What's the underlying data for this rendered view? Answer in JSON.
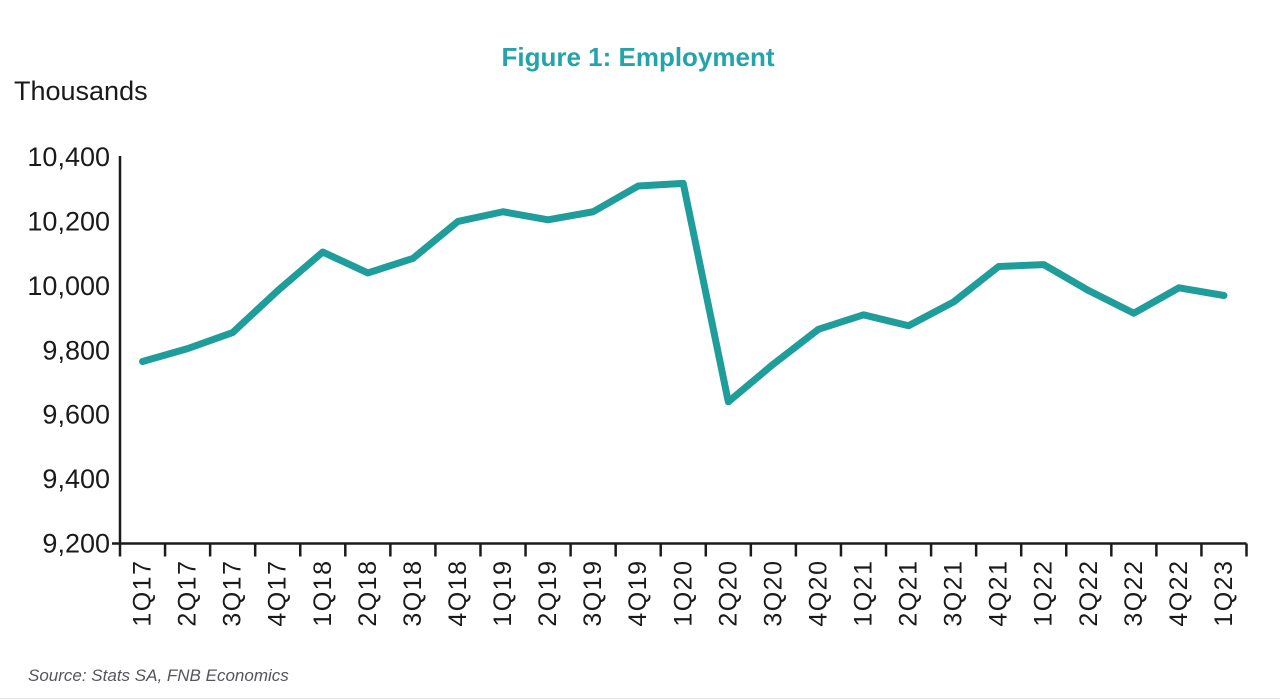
{
  "page": {
    "background": "#ffffff"
  },
  "colors": {
    "title": "#23A4AA",
    "line": "#1F9D9B",
    "axis": "#1B1B1B",
    "text": "#1A1A1A",
    "source": "#55565A",
    "divider": "#E7E7E7"
  },
  "chart_data": {
    "type": "line",
    "title": "Figure 1: Employment",
    "unit_label": "Thousands",
    "source": "Source: Stats SA, FNB Economics",
    "categories": [
      "1Q17",
      "2Q17",
      "3Q17",
      "4Q17",
      "1Q18",
      "2Q18",
      "3Q18",
      "4Q18",
      "1Q19",
      "2Q19",
      "3Q19",
      "4Q19",
      "1Q20",
      "2Q20",
      "3Q20",
      "4Q20",
      "1Q21",
      "2Q21",
      "3Q21",
      "4Q21",
      "1Q22",
      "2Q22",
      "3Q22",
      "4Q22",
      "1Q23"
    ],
    "series": [
      {
        "name": "Employment (thousands)",
        "values": [
          9765,
          9805,
          9855,
          9985,
          10105,
          10040,
          10085,
          10200,
          10230,
          10205,
          10230,
          10310,
          10318,
          9640,
          9757,
          9865,
          9910,
          9876,
          9950,
          10060,
          10066,
          9985,
          9915,
          9994,
          9970
        ]
      }
    ],
    "ylim": [
      9200,
      10400
    ],
    "ytick_step": 200,
    "ytick_labels": [
      "9,200",
      "9,400",
      "9,600",
      "9,800",
      "10,000",
      "10,200",
      "10,400"
    ],
    "xlabel": "",
    "ylabel": "Thousands",
    "grid": false,
    "legend": false,
    "line_width": 7
  }
}
